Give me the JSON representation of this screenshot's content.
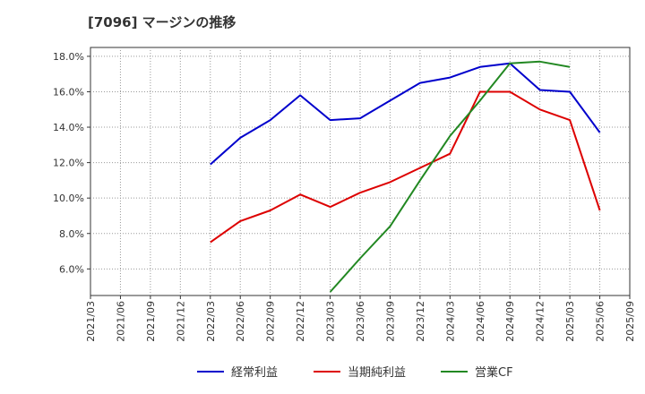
{
  "chart_data": {
    "type": "line",
    "title": "[7096]  マージンの推移",
    "xlabel": "",
    "ylabel": "",
    "x": [
      "2021/03",
      "2021/06",
      "2021/09",
      "2021/12",
      "2022/03",
      "2022/06",
      "2022/09",
      "2022/12",
      "2023/03",
      "2023/06",
      "2023/09",
      "2023/12",
      "2024/03",
      "2024/06",
      "2024/09",
      "2024/12",
      "2025/03",
      "2025/06",
      "2025/09"
    ],
    "ylim": [
      4.5,
      18.5
    ],
    "yticks": [
      6.0,
      8.0,
      10.0,
      12.0,
      14.0,
      16.0,
      18.0
    ],
    "ytick_labels": [
      "6.0%",
      "8.0%",
      "10.0%",
      "12.0%",
      "14.0%",
      "16.0%",
      "18.0%"
    ],
    "grid": true,
    "legend_position": "bottom",
    "series": [
      {
        "name": "経常利益",
        "color": "#0000cc",
        "values": [
          null,
          null,
          null,
          null,
          11.9,
          13.4,
          14.4,
          15.8,
          14.4,
          14.5,
          15.5,
          16.5,
          16.8,
          17.4,
          17.6,
          16.1,
          16.0,
          13.7,
          null
        ]
      },
      {
        "name": "当期純利益",
        "color": "#dd0000",
        "values": [
          null,
          null,
          null,
          null,
          7.5,
          8.7,
          9.3,
          10.2,
          9.5,
          10.3,
          10.9,
          11.7,
          12.5,
          16.0,
          16.0,
          15.0,
          14.4,
          9.3,
          null
        ]
      },
      {
        "name": "営業CF",
        "color": "#228822",
        "values": [
          null,
          null,
          null,
          null,
          null,
          null,
          null,
          null,
          4.7,
          6.6,
          8.4,
          11.0,
          13.5,
          15.5,
          17.6,
          17.7,
          17.4,
          null,
          null
        ]
      }
    ]
  }
}
